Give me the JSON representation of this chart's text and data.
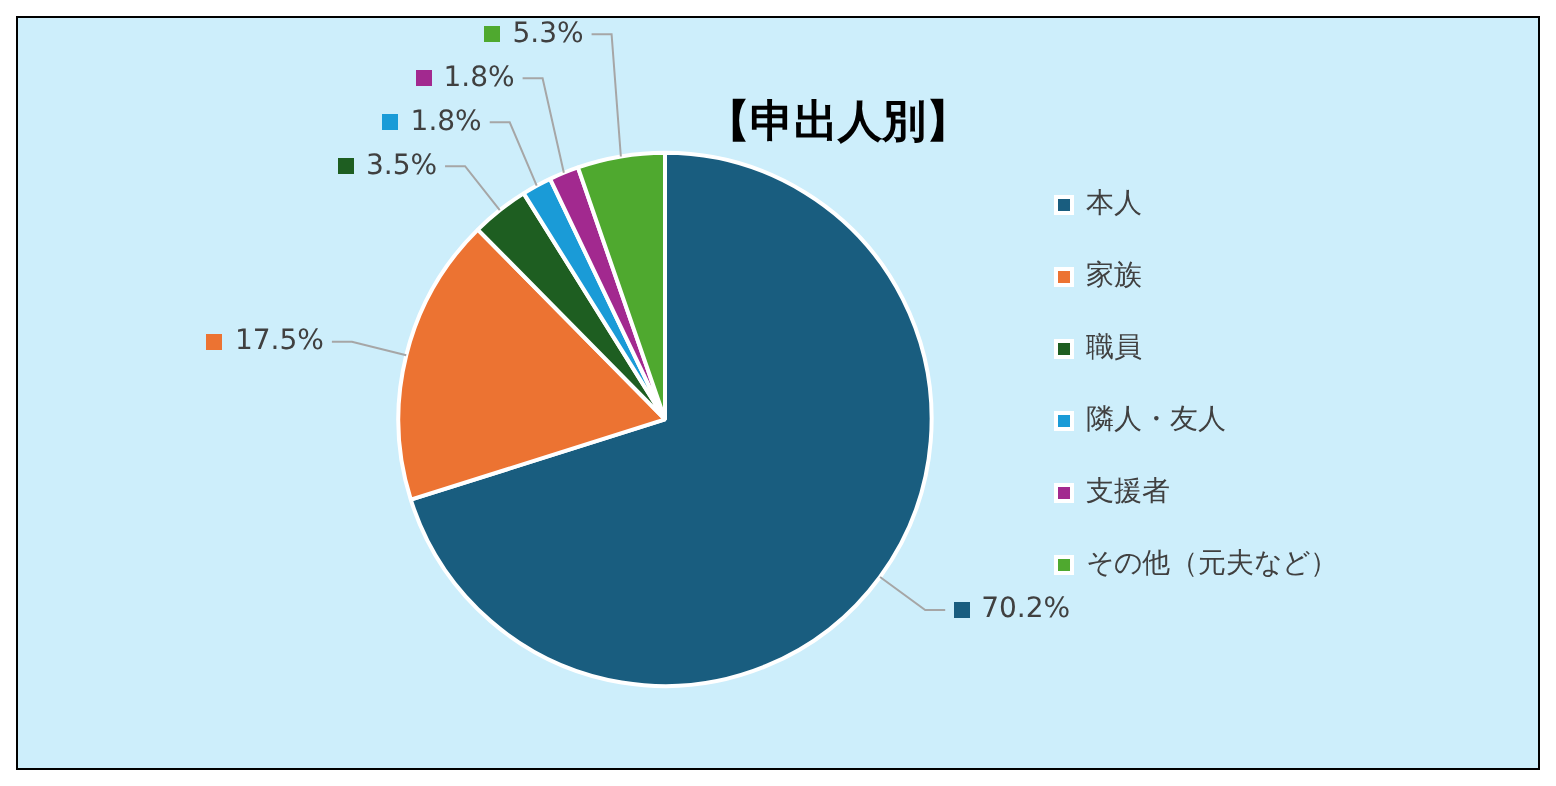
{
  "chart_data": {
    "type": "pie",
    "title": "【申出人別】",
    "categories": [
      "本人",
      "家族",
      "職員",
      "隣人・友人",
      "支援者",
      "その他（元夫など）"
    ],
    "values": [
      70.2,
      17.5,
      3.5,
      1.8,
      1.8,
      5.3
    ],
    "colors": [
      "#195d7f",
      "#ec7332",
      "#1e5e21",
      "#1a9bd7",
      "#a2298f",
      "#4fa92f"
    ],
    "value_labels": [
      "70.2%",
      "17.5%",
      "3.5%",
      "1.8%",
      "1.8%",
      "5.3%"
    ],
    "legend": "right"
  }
}
